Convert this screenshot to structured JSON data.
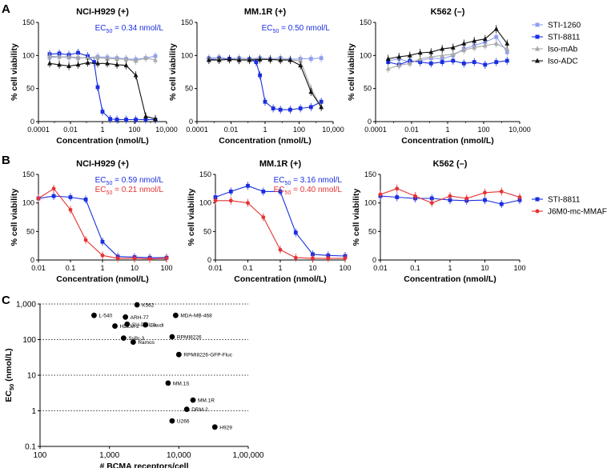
{
  "colors": {
    "light_blue": "#8f9ff0",
    "blue": "#1a2ee0",
    "gray": "#a8a8a8",
    "black": "#111111",
    "red": "#e63232"
  },
  "panel_labels": [
    "A",
    "B",
    "C"
  ],
  "chart_data": [
    {
      "id": "A1",
      "type": "line",
      "title": "NCI-H929 (+)",
      "xlabel": "Concentration (nmol/L)",
      "ylabel": "% cell viability",
      "xscale": "log",
      "xlim": [
        0.0001,
        10000
      ],
      "ylim": [
        0,
        150
      ],
      "x_ticks": [
        "0.0001",
        "0.01",
        "1",
        "100",
        "10,000"
      ],
      "y_ticks": [
        "0",
        "50",
        "100",
        "150"
      ],
      "annotations": [
        {
          "prefix": "EC",
          "sub": "50",
          "suffix": " = 0.34 nmol/L",
          "color": "#1a2ee0"
        }
      ],
      "series": [
        {
          "name": "STI-1260",
          "color": "#8f9ff0",
          "marker": "square",
          "x": [
            0.0005,
            0.002,
            0.008,
            0.03,
            0.12,
            0.5,
            2,
            8,
            30,
            120,
            500,
            2000
          ],
          "y": [
            97,
            98,
            97,
            96,
            97,
            98,
            97,
            96,
            95,
            94,
            96,
            99
          ]
        },
        {
          "name": "STI-8811",
          "color": "#1a2ee0",
          "marker": "square",
          "x": [
            0.0005,
            0.002,
            0.008,
            0.03,
            0.12,
            0.3,
            0.5,
            1,
            3,
            8,
            30,
            120,
            500,
            2000
          ],
          "y": [
            102,
            103,
            101,
            104,
            99,
            90,
            52,
            15,
            4,
            3,
            3,
            3,
            3,
            3
          ]
        },
        {
          "name": "Iso-mAb",
          "color": "#a8a8a8",
          "marker": "triangle",
          "x": [
            0.0005,
            0.002,
            0.008,
            0.03,
            0.12,
            0.5,
            2,
            8,
            30,
            120,
            500,
            2000
          ],
          "y": [
            99,
            98,
            98,
            97,
            96,
            97,
            95,
            95,
            94,
            92,
            96,
            93
          ]
        },
        {
          "name": "Iso-ADC",
          "color": "#111111",
          "marker": "triangle",
          "x": [
            0.0005,
            0.002,
            0.008,
            0.03,
            0.12,
            0.5,
            2,
            8,
            30,
            120,
            500,
            2000
          ],
          "y": [
            88,
            86,
            84,
            86,
            89,
            88,
            88,
            86,
            85,
            70,
            8,
            4
          ]
        }
      ]
    },
    {
      "id": "A2",
      "type": "line",
      "title": "MM.1R (+)",
      "xlabel": "Concentration (nmol/L)",
      "ylabel": "% cell viability",
      "xscale": "log",
      "xlim": [
        0.0001,
        10000
      ],
      "ylim": [
        0,
        150
      ],
      "x_ticks": [
        "0.0001",
        "0.01",
        "1",
        "100",
        "10,000"
      ],
      "y_ticks": [
        "0",
        "50",
        "100",
        "150"
      ],
      "annotations": [
        {
          "prefix": "EC",
          "sub": "50",
          "suffix": " = 0.50 nmol/L",
          "color": "#1a2ee0"
        }
      ],
      "series": [
        {
          "name": "STI-1260",
          "color": "#8f9ff0",
          "marker": "square",
          "x": [
            0.0005,
            0.002,
            0.008,
            0.03,
            0.12,
            0.5,
            2,
            8,
            30,
            120,
            500,
            2000
          ],
          "y": [
            96,
            97,
            95,
            96,
            95,
            96,
            95,
            96,
            94,
            95,
            95,
            96
          ]
        },
        {
          "name": "STI-8811",
          "color": "#1a2ee0",
          "marker": "square",
          "x": [
            0.0005,
            0.002,
            0.008,
            0.03,
            0.12,
            0.3,
            0.5,
            1,
            3,
            8,
            30,
            120,
            500,
            2000
          ],
          "y": [
            94,
            95,
            95,
            93,
            94,
            90,
            70,
            30,
            20,
            18,
            18,
            20,
            22,
            30
          ]
        },
        {
          "name": "Iso-mAb",
          "color": "#a8a8a8",
          "marker": "triangle",
          "x": [
            0.0005,
            0.002,
            0.008,
            0.03,
            0.12,
            0.5,
            2,
            8,
            30,
            120,
            500,
            2000
          ],
          "y": [
            95,
            95,
            94,
            94,
            94,
            95,
            94,
            94,
            93,
            92,
            50,
            22
          ]
        },
        {
          "name": "Iso-ADC",
          "color": "#111111",
          "marker": "triangle",
          "x": [
            0.0005,
            0.002,
            0.008,
            0.03,
            0.12,
            0.5,
            2,
            8,
            30,
            120,
            500,
            2000
          ],
          "y": [
            93,
            93,
            94,
            93,
            93,
            94,
            94,
            93,
            93,
            85,
            45,
            22
          ]
        }
      ]
    },
    {
      "id": "A3",
      "type": "line",
      "title": "K562 (–)",
      "xlabel": "Concentration (nmol/L)",
      "ylabel": "% cell viability",
      "xscale": "log",
      "xlim": [
        0.0001,
        10000
      ],
      "ylim": [
        0,
        150
      ],
      "x_ticks": [
        "0.0001",
        "0.01",
        "1",
        "100",
        "10,000"
      ],
      "y_ticks": [
        "0",
        "50",
        "100",
        "150"
      ],
      "annotations": [],
      "series": [
        {
          "name": "STI-1260",
          "color": "#8f9ff0",
          "marker": "square",
          "x": [
            0.0005,
            0.002,
            0.008,
            0.03,
            0.12,
            0.5,
            2,
            8,
            30,
            120,
            500,
            2000
          ],
          "y": [
            92,
            95,
            90,
            92,
            96,
            95,
            100,
            110,
            115,
            120,
            128,
            105
          ]
        },
        {
          "name": "STI-8811",
          "color": "#1a2ee0",
          "marker": "square",
          "x": [
            0.0005,
            0.002,
            0.008,
            0.03,
            0.12,
            0.5,
            2,
            8,
            30,
            120,
            500,
            2000
          ],
          "y": [
            90,
            86,
            92,
            90,
            88,
            90,
            92,
            88,
            90,
            86,
            90,
            92
          ]
        },
        {
          "name": "Iso-mAb",
          "color": "#a8a8a8",
          "marker": "triangle",
          "x": [
            0.0005,
            0.002,
            0.008,
            0.03,
            0.12,
            0.5,
            2,
            8,
            30,
            120,
            500,
            2000
          ],
          "y": [
            80,
            85,
            88,
            95,
            98,
            100,
            102,
            108,
            112,
            115,
            118,
            110
          ]
        },
        {
          "name": "Iso-ADC",
          "color": "#111111",
          "marker": "triangle",
          "x": [
            0.0005,
            0.002,
            0.008,
            0.03,
            0.12,
            0.5,
            2,
            8,
            30,
            120,
            500,
            2000
          ],
          "y": [
            95,
            98,
            100,
            104,
            105,
            110,
            112,
            118,
            122,
            125,
            140,
            118
          ]
        }
      ]
    },
    {
      "id": "B1",
      "type": "line",
      "title": "NCI-H929 (+)",
      "xlabel": "Concentration (nmol/L)",
      "ylabel": "% cell viability",
      "xscale": "log",
      "xlim": [
        0.01,
        100
      ],
      "ylim": [
        0,
        150
      ],
      "x_ticks": [
        "0.01",
        "0.1",
        "1",
        "10",
        "100"
      ],
      "y_ticks": [
        "0",
        "50",
        "100",
        "150"
      ],
      "annotations": [
        {
          "prefix": "EC",
          "sub": "50",
          "suffix": " = 0.59 nmol/L",
          "color": "#1a2ee0"
        },
        {
          "prefix": "EC",
          "sub": "50",
          "suffix": " = 0.21 nmol/L",
          "color": "#e63232"
        }
      ],
      "series": [
        {
          "name": "STI-8811",
          "color": "#1a2ee0",
          "marker": "square",
          "x": [
            0.01,
            0.03,
            0.1,
            0.3,
            1,
            3,
            10,
            30,
            100
          ],
          "y": [
            108,
            112,
            110,
            106,
            32,
            6,
            5,
            4,
            4
          ]
        },
        {
          "name": "J6M0-mc-MMAF",
          "color": "#e63232",
          "marker": "circle",
          "x": [
            0.01,
            0.03,
            0.1,
            0.3,
            1,
            3,
            10,
            30,
            100
          ],
          "y": [
            108,
            125,
            88,
            35,
            8,
            3,
            3,
            2,
            3
          ]
        }
      ]
    },
    {
      "id": "B2",
      "type": "line",
      "title": "MM.1R (+)",
      "xlabel": "Concentration (nmol/L)",
      "ylabel": "% cell viability",
      "xscale": "log",
      "xlim": [
        0.01,
        100
      ],
      "ylim": [
        0,
        150
      ],
      "x_ticks": [
        "0.01",
        "0.1",
        "1",
        "10",
        "100"
      ],
      "y_ticks": [
        "0",
        "50",
        "100",
        "150"
      ],
      "annotations": [
        {
          "prefix": "EC",
          "sub": "50",
          "suffix": " = 3.16 nmol/L",
          "color": "#1a2ee0"
        },
        {
          "prefix": "EC",
          "sub": "50",
          "suffix": " = 0.40 nmol/L",
          "color": "#e63232"
        }
      ],
      "series": [
        {
          "name": "STI-8811",
          "color": "#1a2ee0",
          "marker": "square",
          "x": [
            0.01,
            0.03,
            0.1,
            0.3,
            1,
            3,
            10,
            30,
            100
          ],
          "y": [
            110,
            120,
            130,
            120,
            120,
            48,
            10,
            8,
            7
          ]
        },
        {
          "name": "J6M0-mc-MMAF",
          "color": "#e63232",
          "marker": "circle",
          "x": [
            0.01,
            0.03,
            0.1,
            0.3,
            1,
            3,
            10,
            30,
            100
          ],
          "y": [
            104,
            104,
            100,
            75,
            18,
            4,
            3,
            3,
            3
          ]
        }
      ]
    },
    {
      "id": "B3",
      "type": "line",
      "title": "K562 (–)",
      "xlabel": "Concentration (nmol/L)",
      "ylabel": "% cell viability",
      "xscale": "log",
      "xlim": [
        0.01,
        100
      ],
      "ylim": [
        0,
        150
      ],
      "x_ticks": [
        "0.01",
        "0.1",
        "1",
        "10",
        "100"
      ],
      "y_ticks": [
        "0",
        "50",
        "100",
        "150"
      ],
      "annotations": [],
      "series": [
        {
          "name": "STI-8811",
          "color": "#1a2ee0",
          "marker": "square",
          "x": [
            0.01,
            0.03,
            0.1,
            0.3,
            1,
            3,
            10,
            30,
            100
          ],
          "y": [
            112,
            110,
            108,
            108,
            105,
            104,
            105,
            98,
            105
          ]
        },
        {
          "name": "J6M0-mc-MMAF",
          "color": "#e63232",
          "marker": "circle",
          "x": [
            0.01,
            0.03,
            0.1,
            0.3,
            1,
            3,
            10,
            30,
            100
          ],
          "y": [
            115,
            125,
            112,
            100,
            112,
            108,
            118,
            120,
            110
          ]
        }
      ]
    },
    {
      "id": "C",
      "type": "scatter",
      "xlabel": "# BCMA receptors/cell",
      "ylabel": "EC50 (nmol/L)",
      "ylabel_parts": {
        "main": "EC",
        "sub": "50",
        "rest": " (nmol/L)"
      },
      "xscale": "log",
      "yscale": "log",
      "xlim": [
        100,
        100000
      ],
      "ylim": [
        0.1,
        1000
      ],
      "x_ticks": [
        "100",
        "1,000",
        "10,000",
        "1,00,000"
      ],
      "y_ticks": [
        "0.1",
        "1",
        "10",
        "100",
        "1,000"
      ],
      "points": [
        {
          "label": "K562",
          "x": 2500,
          "y": 950
        },
        {
          "label": "L-540",
          "x": 600,
          "y": 480
        },
        {
          "label": "ARH-77",
          "x": 1700,
          "y": 430
        },
        {
          "label": "MDA-MB-468",
          "x": 9000,
          "y": 480
        },
        {
          "label": "SU-DHL-1",
          "x": 1800,
          "y": 270
        },
        {
          "label": "HDLM-2",
          "x": 1200,
          "y": 240
        },
        {
          "label": "Daudi",
          "x": 3300,
          "y": 260
        },
        {
          "label": "RPMI8226",
          "x": 8000,
          "y": 120
        },
        {
          "label": "SsBr-3",
          "x": 1600,
          "y": 110
        },
        {
          "label": "Ramos",
          "x": 2200,
          "y": 85
        },
        {
          "label": "RPMI8226-GFP-Fluc",
          "x": 10000,
          "y": 38
        },
        {
          "label": "MM.1S",
          "x": 7000,
          "y": 6
        },
        {
          "label": "MM.1R",
          "x": 16000,
          "y": 2
        },
        {
          "label": "DRM-2",
          "x": 13000,
          "y": 1.1
        },
        {
          "label": "U266",
          "x": 8000,
          "y": 0.52
        },
        {
          "label": "H929",
          "x": 33000,
          "y": 0.35
        }
      ]
    }
  ],
  "legend_a": [
    {
      "name": "STI-1260",
      "color": "#8f9ff0",
      "marker": "square"
    },
    {
      "name": "STI-8811",
      "color": "#1a2ee0",
      "marker": "square"
    },
    {
      "name": "Iso-mAb",
      "color": "#a8a8a8",
      "marker": "triangle"
    },
    {
      "name": "Iso-ADC",
      "color": "#111111",
      "marker": "triangle"
    }
  ],
  "legend_b": [
    {
      "name": "STI-8811",
      "color": "#1a2ee0",
      "marker": "square"
    },
    {
      "name": "J6M0-mc-MMAF",
      "color": "#e63232",
      "marker": "circle"
    }
  ]
}
